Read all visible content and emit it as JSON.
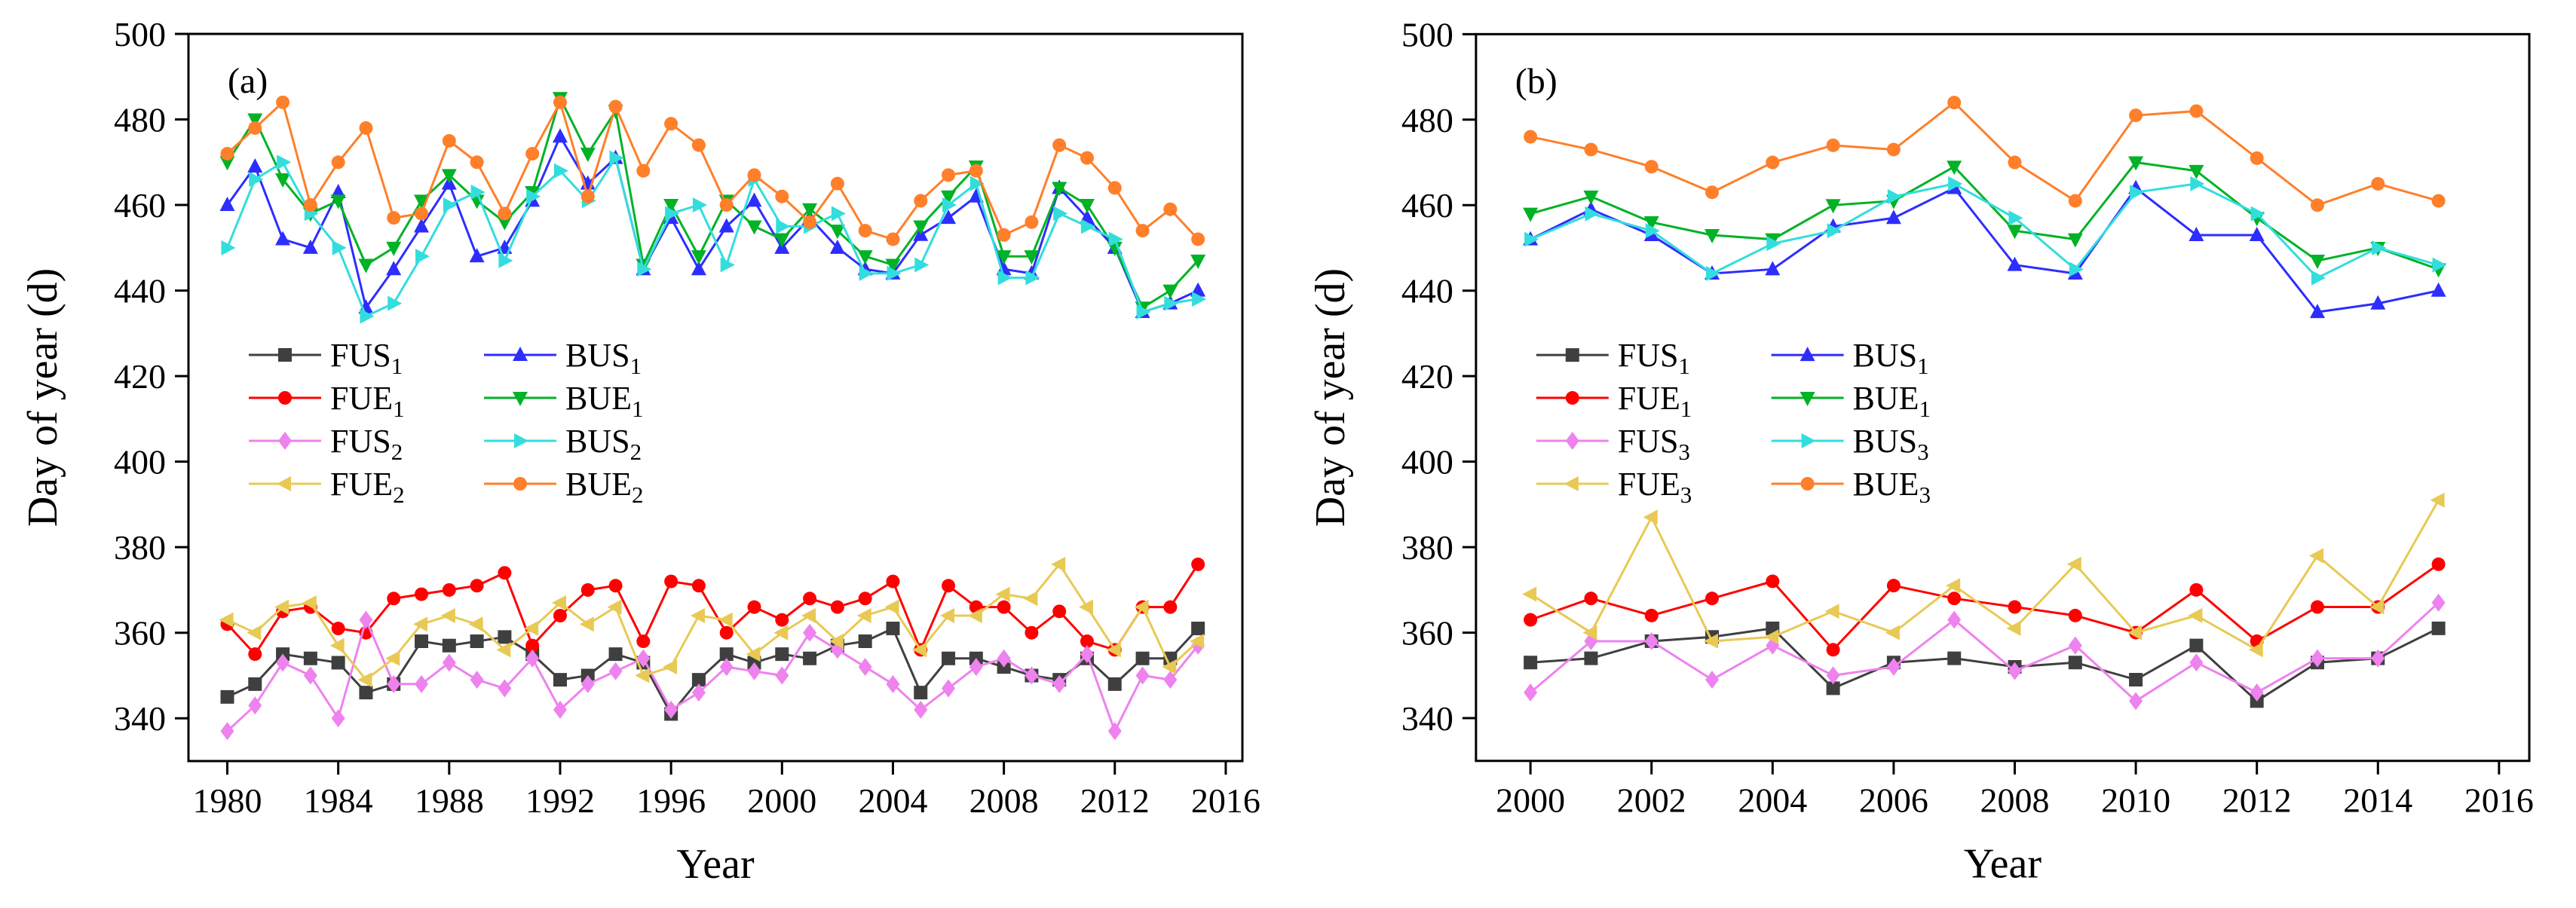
{
  "figure": {
    "background": "#ffffff",
    "text_color": "#000000",
    "frame_color": "#000000"
  },
  "chart_data": [
    {
      "type": "line",
      "panel_label": "(a)",
      "xlabel": "Year",
      "ylabel": "Day of year (d)",
      "axes": {
        "xlim": [
          1978.6,
          2016.6
        ],
        "ylim": [
          330,
          500
        ],
        "xticks": [
          1980,
          1984,
          1988,
          1992,
          1996,
          2000,
          2004,
          2008,
          2012,
          2016
        ],
        "yticks": [
          340,
          360,
          380,
          400,
          420,
          440,
          460,
          480,
          500
        ],
        "grid": false
      },
      "legend": {
        "position": "inside-center-left",
        "columns": 2
      },
      "x": [
        1980,
        1981,
        1982,
        1983,
        1984,
        1985,
        1986,
        1987,
        1988,
        1989,
        1990,
        1991,
        1992,
        1993,
        1994,
        1995,
        1996,
        1997,
        1998,
        1999,
        2000,
        2001,
        2002,
        2003,
        2004,
        2005,
        2006,
        2007,
        2008,
        2009,
        2010,
        2011,
        2012,
        2013,
        2014,
        2015
      ],
      "series": [
        {
          "label": {
            "base": "FUS",
            "sub": "1"
          },
          "color": "#3f3f3f",
          "marker": "square",
          "values": [
            345,
            348,
            355,
            354,
            353,
            346,
            348,
            358,
            357,
            358,
            359,
            355,
            349,
            350,
            355,
            353,
            341,
            349,
            355,
            353,
            355,
            354,
            357,
            358,
            361,
            346,
            354,
            354,
            352,
            350,
            349,
            354,
            348,
            354,
            354,
            361
          ]
        },
        {
          "label": {
            "base": "BUS",
            "sub": "1"
          },
          "color": "#2d2dff",
          "marker": "triangle-up",
          "values": [
            460,
            469,
            452,
            450,
            463,
            436,
            445,
            455,
            465,
            448,
            450,
            461,
            476,
            465,
            471,
            445,
            457,
            445,
            455,
            461,
            450,
            457,
            450,
            445,
            444,
            453,
            457,
            462,
            445,
            444,
            464,
            457,
            450,
            435,
            437,
            440
          ]
        },
        {
          "label": {
            "base": "FUE",
            "sub": "1"
          },
          "color": "#ff0000",
          "marker": "circle",
          "values": [
            362,
            355,
            365,
            366,
            361,
            360,
            368,
            369,
            370,
            371,
            374,
            357,
            364,
            370,
            371,
            358,
            372,
            371,
            360,
            366,
            363,
            368,
            366,
            368,
            372,
            356,
            371,
            366,
            366,
            360,
            365,
            358,
            356,
            366,
            366,
            376
          ]
        },
        {
          "label": {
            "base": "BUE",
            "sub": "1"
          },
          "color": "#00b226",
          "marker": "triangle-down",
          "values": [
            470,
            480,
            466,
            458,
            461,
            446,
            450,
            461,
            467,
            461,
            456,
            463,
            485,
            472,
            482,
            446,
            460,
            448,
            461,
            455,
            452,
            459,
            454,
            448,
            446,
            455,
            462,
            469,
            448,
            448,
            464,
            460,
            450,
            436,
            440,
            447
          ]
        },
        {
          "label": {
            "base": "FUS",
            "sub": "2"
          },
          "color": "#ee82ee",
          "marker": "diamond",
          "values": [
            337,
            343,
            353,
            350,
            340,
            363,
            348,
            348,
            353,
            349,
            347,
            354,
            342,
            348,
            351,
            354,
            342,
            346,
            352,
            351,
            350,
            360,
            356,
            352,
            348,
            342,
            347,
            352,
            354,
            350,
            348,
            355,
            337,
            350,
            349,
            357
          ]
        },
        {
          "label": {
            "base": "BUS",
            "sub": "2"
          },
          "color": "#33dddd",
          "marker": "triangle-right",
          "values": [
            450,
            466,
            470,
            458,
            450,
            434,
            437,
            448,
            460,
            463,
            447,
            462,
            468,
            461,
            471,
            445,
            458,
            460,
            446,
            466,
            455,
            455,
            458,
            444,
            444,
            446,
            460,
            465,
            443,
            443,
            458,
            455,
            452,
            435,
            437,
            438
          ]
        },
        {
          "label": {
            "base": "FUE",
            "sub": "2"
          },
          "color": "#e8c954",
          "marker": "triangle-left",
          "values": [
            363,
            360,
            366,
            367,
            357,
            349,
            354,
            362,
            364,
            362,
            356,
            361,
            367,
            362,
            366,
            350,
            352,
            364,
            363,
            355,
            360,
            364,
            358,
            364,
            366,
            356,
            364,
            364,
            369,
            368,
            376,
            366,
            356,
            366,
            352,
            358
          ]
        },
        {
          "label": {
            "base": "BUE",
            "sub": "2"
          },
          "color": "#ff7f2a",
          "marker": "circle",
          "values": [
            472,
            478,
            484,
            460,
            470,
            478,
            457,
            458,
            475,
            470,
            458,
            472,
            484,
            462,
            483,
            468,
            479,
            474,
            460,
            467,
            462,
            456,
            465,
            454,
            452,
            461,
            467,
            468,
            453,
            456,
            474,
            471,
            464,
            454,
            459,
            452
          ]
        }
      ]
    },
    {
      "type": "line",
      "panel_label": "(b)",
      "xlabel": "Year",
      "ylabel": "Day of year (d)",
      "axes": {
        "xlim": [
          1999.1,
          2016.5
        ],
        "ylim": [
          330,
          500
        ],
        "xticks": [
          2000,
          2002,
          2004,
          2006,
          2008,
          2010,
          2012,
          2014,
          2016
        ],
        "yticks": [
          340,
          360,
          380,
          400,
          420,
          440,
          460,
          480,
          500
        ],
        "grid": false
      },
      "legend": {
        "position": "inside-center-left",
        "columns": 2
      },
      "x": [
        2000,
        2001,
        2002,
        2003,
        2004,
        2005,
        2006,
        2007,
        2008,
        2009,
        2010,
        2011,
        2012,
        2013,
        2014,
        2015
      ],
      "series": [
        {
          "label": {
            "base": "FUS",
            "sub": "1"
          },
          "color": "#3f3f3f",
          "marker": "square",
          "values": [
            353,
            354,
            358,
            359,
            361,
            347,
            353,
            354,
            352,
            353,
            349,
            357,
            344,
            353,
            354,
            361
          ]
        },
        {
          "label": {
            "base": "BUS",
            "sub": "1"
          },
          "color": "#2d2dff",
          "marker": "triangle-up",
          "values": [
            452,
            459,
            453,
            444,
            445,
            455,
            457,
            464,
            446,
            444,
            464,
            453,
            453,
            435,
            437,
            440
          ]
        },
        {
          "label": {
            "base": "FUE",
            "sub": "1"
          },
          "color": "#ff0000",
          "marker": "circle",
          "values": [
            363,
            368,
            364,
            368,
            372,
            356,
            371,
            368,
            366,
            364,
            360,
            370,
            358,
            366,
            366,
            376
          ]
        },
        {
          "label": {
            "base": "BUE",
            "sub": "1"
          },
          "color": "#00b226",
          "marker": "triangle-down",
          "values": [
            458,
            462,
            456,
            453,
            452,
            460,
            461,
            469,
            454,
            452,
            470,
            468,
            457,
            447,
            450,
            445
          ]
        },
        {
          "label": {
            "base": "FUS",
            "sub": "3"
          },
          "color": "#ee82ee",
          "marker": "diamond",
          "values": [
            346,
            358,
            358,
            349,
            357,
            350,
            352,
            363,
            351,
            357,
            344,
            353,
            346,
            354,
            354,
            367
          ]
        },
        {
          "label": {
            "base": "BUS",
            "sub": "3"
          },
          "color": "#33dddd",
          "marker": "triangle-right",
          "values": [
            452,
            458,
            454,
            444,
            451,
            454,
            462,
            465,
            457,
            445,
            463,
            465,
            458,
            443,
            450,
            446
          ]
        },
        {
          "label": {
            "base": "FUE",
            "sub": "3"
          },
          "color": "#e8c954",
          "marker": "triangle-left",
          "values": [
            369,
            360,
            387,
            358,
            359,
            365,
            360,
            371,
            361,
            376,
            360,
            364,
            356,
            378,
            366,
            391
          ]
        },
        {
          "label": {
            "base": "BUE",
            "sub": "3"
          },
          "color": "#ff7f2a",
          "marker": "circle",
          "values": [
            476,
            473,
            469,
            463,
            470,
            474,
            473,
            484,
            470,
            461,
            481,
            482,
            471,
            460,
            465,
            461
          ]
        }
      ]
    }
  ]
}
